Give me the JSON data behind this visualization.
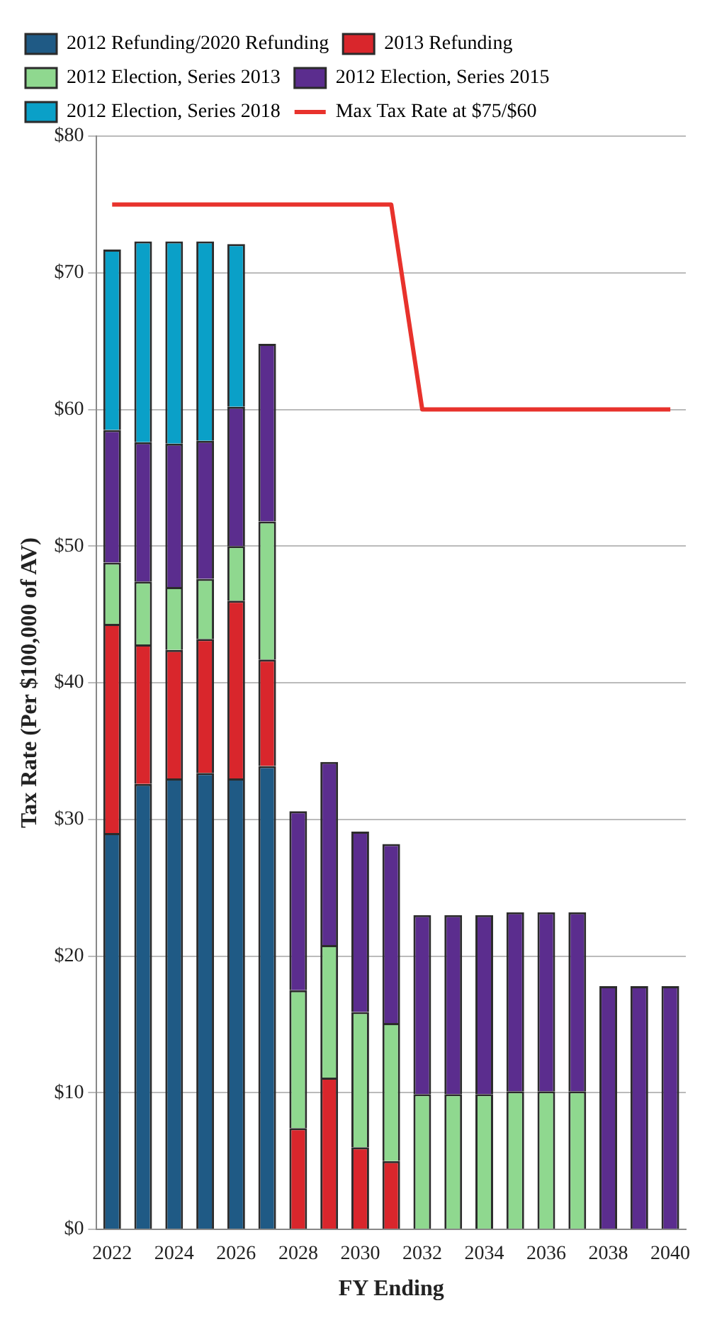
{
  "chart_data": {
    "type": "bar",
    "stacked": true,
    "xlabel": "FY Ending",
    "ylabel": "Tax Rate (Per $100,000 of AV)",
    "categories": [
      "2022",
      null,
      "2024",
      null,
      "2026",
      null,
      "2028",
      null,
      "2030",
      null,
      "2032",
      null,
      "2034",
      null,
      "2036",
      null,
      "2038",
      null,
      "2040"
    ],
    "series": [
      {
        "name": "2012 Refunding/2020 Refunding",
        "color": "#1f5a85",
        "values": [
          29,
          32.6,
          33,
          33.4,
          33,
          33.9,
          null,
          null,
          null,
          null,
          null,
          null,
          null,
          null,
          null,
          null,
          null,
          null,
          null
        ]
      },
      {
        "name": "2013 Refunding",
        "color": "#d9262c",
        "values": [
          15.3,
          10.2,
          9.4,
          9.8,
          13,
          7.8,
          7.4,
          11.1,
          6,
          5,
          null,
          null,
          null,
          null,
          null,
          null,
          null,
          null,
          null
        ]
      },
      {
        "name": "2012 Election, Series 2013",
        "color": "#8fd88f",
        "values": [
          4.5,
          4.6,
          4.6,
          4.4,
          4,
          10.1,
          10.1,
          9.7,
          9.9,
          10.1,
          9.9,
          9.9,
          9.9,
          10.1,
          10.1,
          10.1,
          null,
          null,
          null
        ]
      },
      {
        "name": "2012 Election, Series 2015",
        "color": "#5b2d8e",
        "values": [
          9.7,
          10.2,
          10.5,
          10.1,
          10.2,
          13,
          13.1,
          13.4,
          13.2,
          13.1,
          13.1,
          13.1,
          13.1,
          13.1,
          13.1,
          13.1,
          17.8,
          17.8,
          17.8
        ]
      },
      {
        "name": "2012 Election, Series 2018",
        "color": "#0aa0c8",
        "values": [
          13.2,
          14.7,
          14.8,
          14.6,
          11.9,
          null,
          null,
          null,
          null,
          null,
          null,
          null,
          null,
          null,
          null,
          null,
          null,
          null,
          null
        ]
      },
      {
        "name": "Max Tax Rate at $75/$60",
        "type": "line",
        "color": "#e8322c",
        "values": [
          75,
          75,
          75,
          75,
          75,
          75,
          75,
          75,
          75,
          75,
          60,
          60,
          60,
          60,
          60,
          60,
          60,
          60,
          60
        ]
      }
    ],
    "ylim": [
      0,
      80
    ],
    "yticks": [
      {
        "value": 0,
        "label": "$0"
      },
      {
        "value": 10,
        "label": "$10"
      },
      {
        "value": 20,
        "label": "$20"
      },
      {
        "value": 30,
        "label": "$30"
      },
      {
        "value": 40,
        "label": "$40"
      },
      {
        "value": 50,
        "label": "$50"
      },
      {
        "value": 60,
        "label": "$60"
      },
      {
        "value": 70,
        "label": "$70"
      },
      {
        "value": 80,
        "label": "$80"
      }
    ],
    "grid": "y",
    "legend": "top"
  }
}
